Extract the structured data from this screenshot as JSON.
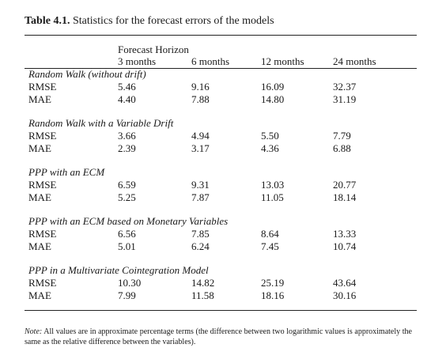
{
  "table": {
    "label": "Table 4.1.",
    "caption": "Statistics for the forecast errors of the models",
    "header_group": "Forecast Horizon",
    "columns": [
      "3 months",
      "6 months",
      "12 months",
      "24 months"
    ],
    "sections": [
      {
        "name": "Random Walk (without drift)",
        "rows": [
          {
            "label": "RMSE",
            "values": [
              "5.46",
              "9.16",
              "16.09",
              "32.37"
            ]
          },
          {
            "label": "MAE",
            "values": [
              "4.40",
              "7.88",
              "14.80",
              "31.19"
            ]
          }
        ]
      },
      {
        "name": "Random Walk with a Variable Drift",
        "rows": [
          {
            "label": "RMSE",
            "values": [
              "3.66",
              "4.94",
              "5.50",
              "7.79"
            ]
          },
          {
            "label": "MAE",
            "values": [
              "2.39",
              "3.17",
              "4.36",
              "6.88"
            ]
          }
        ]
      },
      {
        "name": "PPP with an ECM",
        "rows": [
          {
            "label": "RMSE",
            "values": [
              "6.59",
              "9.31",
              "13.03",
              "20.77"
            ]
          },
          {
            "label": "MAE",
            "values": [
              "5.25",
              "7.87",
              "11.05",
              "18.14"
            ]
          }
        ]
      },
      {
        "name": "PPP with an ECM based on Monetary Variables",
        "rows": [
          {
            "label": "RMSE",
            "values": [
              "6.56",
              "7.85",
              "8.64",
              "13.33"
            ]
          },
          {
            "label": "MAE",
            "values": [
              "5.01",
              "6.24",
              "7.45",
              "10.74"
            ]
          }
        ]
      },
      {
        "name": "PPP in a Multivariate Cointegration Model",
        "rows": [
          {
            "label": "RMSE",
            "values": [
              "10.30",
              "14.82",
              "25.19",
              "43.64"
            ]
          },
          {
            "label": "MAE",
            "values": [
              "7.99",
              "11.58",
              "18.16",
              "30.16"
            ]
          }
        ]
      }
    ]
  },
  "note": {
    "label": "Note:",
    "text": "All values are in approximate percentage terms (the difference between two logarithmic values is approximately the same as the relative difference between the variables)."
  }
}
